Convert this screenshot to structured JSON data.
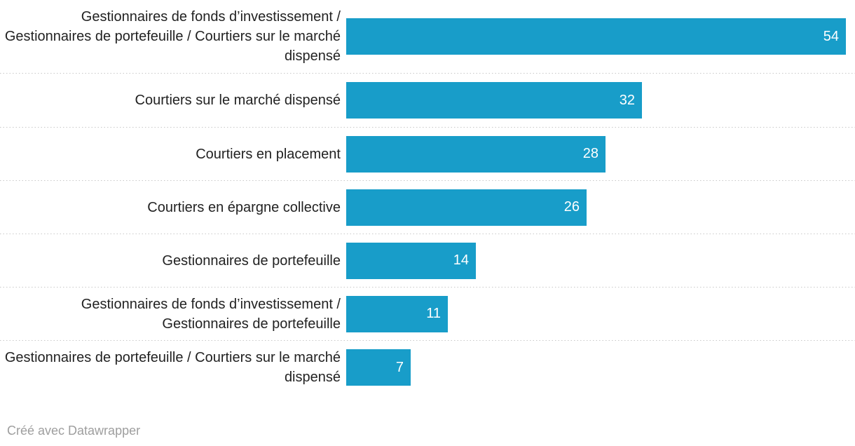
{
  "chart_data": {
    "type": "bar",
    "orientation": "horizontal",
    "title": "",
    "xlabel": "",
    "ylabel": "",
    "xlim": [
      0,
      55
    ],
    "grid": false,
    "legend": false,
    "bar_color": "#189dc9",
    "label_color": "#222222",
    "value_label_color": "#ffffff",
    "separator_color": "#c8c8c8",
    "categories": [
      "Gestionnaires de fonds d’investissement / Gestionnaires de portefeuille / Courtiers sur le marché dispensé",
      "Courtiers sur le marché dispensé",
      "Courtiers en placement",
      "Courtiers en épargne collective",
      "Gestionnaires de portefeuille",
      "Gestionnaires de fonds d’investissement / Gestionnaires de portefeuille",
      "Gestionnaires de portefeuille / Courtiers sur le marché dispensé"
    ],
    "values": [
      54,
      32,
      28,
      26,
      14,
      11,
      7
    ]
  },
  "footer": {
    "attribution": "Créé avec Datawrapper"
  }
}
